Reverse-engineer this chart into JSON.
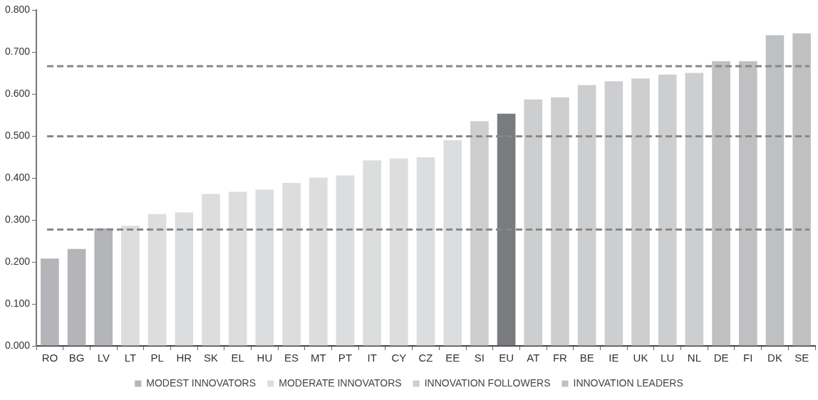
{
  "chart_data": {
    "type": "bar",
    "stacked": true,
    "categories": [
      "RO",
      "BG",
      "LV",
      "LT",
      "PL",
      "HR",
      "SK",
      "EL",
      "HU",
      "ES",
      "MT",
      "PT",
      "IT",
      "CY",
      "CZ",
      "EE",
      "SI",
      "EU",
      "AT",
      "FR",
      "BE",
      "IE",
      "UK",
      "LU",
      "NL",
      "DE",
      "FI",
      "DK",
      "SE"
    ],
    "series": [
      {
        "name": "MODEST INNOVATORS",
        "color": "#b4b5b9",
        "values": [
          0.208,
          0.231,
          0.28,
          null,
          null,
          null,
          null,
          null,
          null,
          null,
          null,
          null,
          null,
          null,
          null,
          null,
          null,
          null,
          null,
          null,
          null,
          null,
          null,
          null,
          null,
          null,
          null,
          null,
          null
        ]
      },
      {
        "name": "MODERATE INNOVATORS",
        "color": "#dcdddf",
        "values": [
          null,
          null,
          null,
          0.286,
          0.314,
          0.318,
          0.362,
          0.367,
          0.372,
          0.388,
          0.401,
          0.406,
          0.442,
          0.446,
          0.449,
          0.49,
          null,
          null,
          null,
          null,
          null,
          null,
          null,
          null,
          null,
          null,
          null,
          null,
          null
        ]
      },
      {
        "name": "INNOVATION FOLLOWERS",
        "color": "#cdced0",
        "values": [
          null,
          null,
          null,
          null,
          null,
          null,
          null,
          null,
          null,
          null,
          null,
          null,
          null,
          null,
          null,
          null,
          0.535,
          null,
          0.587,
          0.592,
          0.621,
          0.63,
          0.637,
          0.646,
          0.65,
          null,
          null,
          null,
          null
        ]
      },
      {
        "name": "INNOVATION LEADERS",
        "color": "#bfc0c2",
        "values": [
          null,
          null,
          null,
          null,
          null,
          null,
          null,
          null,
          null,
          null,
          null,
          null,
          null,
          null,
          null,
          null,
          null,
          null,
          null,
          null,
          null,
          null,
          null,
          null,
          null,
          0.678,
          0.678,
          0.74,
          0.744
        ]
      },
      {
        "color": "#7a7b7f",
        "values": [
          null,
          null,
          null,
          null,
          null,
          null,
          null,
          null,
          null,
          null,
          null,
          null,
          null,
          null,
          null,
          null,
          null,
          0.553,
          null,
          null,
          null,
          null,
          null,
          null,
          null,
          null,
          null,
          null,
          null
        ]
      }
    ],
    "ylim": [
      0,
      0.8
    ],
    "yticks": [
      {
        "value": 0,
        "label": "0.000"
      },
      {
        "value": 0.1,
        "label": "0.100"
      },
      {
        "value": 0.2,
        "label": "0.200"
      },
      {
        "value": 0.3,
        "label": "0.300"
      },
      {
        "value": 0.4,
        "label": "0.400"
      },
      {
        "value": 0.5,
        "label": "0.500"
      },
      {
        "value": 0.6,
        "label": "0.600"
      },
      {
        "value": 0.7,
        "label": "0.700"
      },
      {
        "value": 0.8,
        "label": "0.800"
      }
    ],
    "ref_lines": [
      {
        "axis": "y",
        "value": 0.666,
        "color": "#888888",
        "line_style": "dashed"
      },
      {
        "axis": "y",
        "value": 0.499,
        "color": "#888888",
        "line_style": "dashed"
      },
      {
        "axis": "y",
        "value": 0.277,
        "color": "#888888",
        "line_style": "dashed"
      }
    ],
    "grid": false,
    "legend": "bottom"
  }
}
